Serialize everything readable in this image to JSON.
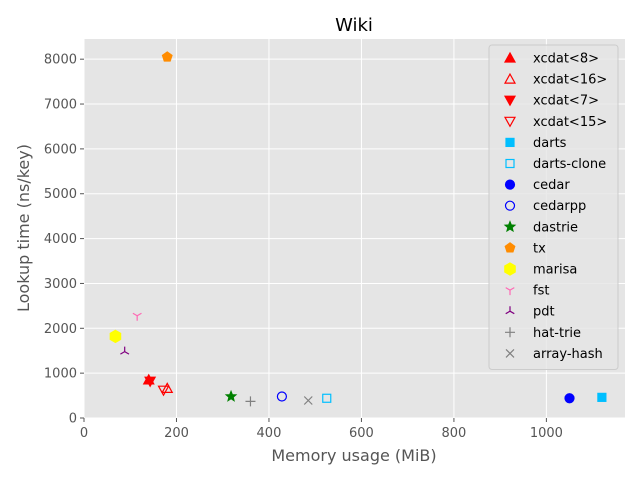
{
  "chart_data": {
    "type": "scatter",
    "title": "Wiki",
    "xlabel": "Memory usage (MiB)",
    "ylabel": "Lookup time (ns/key)",
    "xlim": [
      0,
      1170
    ],
    "ylim": [
      0,
      8450
    ],
    "xticks": [
      0,
      200,
      400,
      600,
      800,
      1000
    ],
    "yticks": [
      0,
      1000,
      2000,
      3000,
      4000,
      5000,
      6000,
      7000,
      8000
    ],
    "grid": true,
    "legend_position": "top-right",
    "series": [
      {
        "name": "xcdat<8>",
        "marker": "triangle-up",
        "filled": true,
        "color": "#ff0000",
        "points": [
          [
            140,
            850
          ]
        ]
      },
      {
        "name": "xcdat<16>",
        "marker": "triangle-up",
        "filled": false,
        "color": "#ff0000",
        "points": [
          [
            180,
            660
          ]
        ]
      },
      {
        "name": "xcdat<7>",
        "marker": "triangle-down",
        "filled": true,
        "color": "#ff0000",
        "points": [
          [
            143,
            820
          ]
        ]
      },
      {
        "name": "xcdat<15>",
        "marker": "triangle-down",
        "filled": false,
        "color": "#ff0000",
        "points": [
          [
            172,
            620
          ]
        ]
      },
      {
        "name": "darts",
        "marker": "square",
        "filled": true,
        "color": "#00bfff",
        "points": [
          [
            1120,
            460
          ]
        ]
      },
      {
        "name": "darts-clone",
        "marker": "square",
        "filled": false,
        "color": "#00bfff",
        "points": [
          [
            525,
            440
          ]
        ]
      },
      {
        "name": "cedar",
        "marker": "circle",
        "filled": true,
        "color": "#0000ff",
        "points": [
          [
            1050,
            440
          ]
        ]
      },
      {
        "name": "cedarpp",
        "marker": "circle",
        "filled": false,
        "color": "#0000ff",
        "points": [
          [
            428,
            480
          ]
        ]
      },
      {
        "name": "dastrie",
        "marker": "star",
        "filled": true,
        "color": "#008000",
        "points": [
          [
            318,
            480
          ]
        ]
      },
      {
        "name": "tx",
        "marker": "pentagon",
        "filled": true,
        "color": "#ff8c00",
        "points": [
          [
            180,
            8050
          ]
        ]
      },
      {
        "name": "marisa",
        "marker": "hexagon",
        "filled": true,
        "color": "#ffff00",
        "points": [
          [
            68,
            1820
          ]
        ]
      },
      {
        "name": "fst",
        "marker": "tri-down",
        "filled": false,
        "color": "#ff69b4",
        "points": [
          [
            115,
            2280
          ]
        ]
      },
      {
        "name": "pdt",
        "marker": "tri-up",
        "filled": false,
        "color": "#800080",
        "points": [
          [
            88,
            1480
          ]
        ]
      },
      {
        "name": "hat-trie",
        "marker": "plus",
        "filled": false,
        "color": "#808080",
        "points": [
          [
            360,
            370
          ]
        ]
      },
      {
        "name": "array-hash",
        "marker": "x",
        "filled": false,
        "color": "#808080",
        "points": [
          [
            485,
            390
          ]
        ]
      }
    ]
  }
}
